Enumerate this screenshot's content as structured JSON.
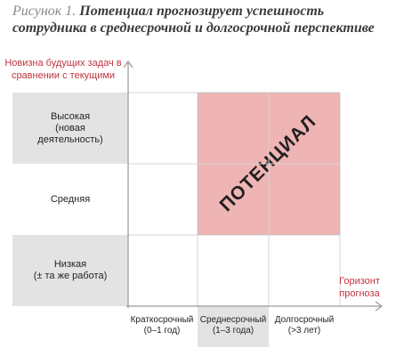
{
  "figure": {
    "title_prefix": "Рисунок 1.",
    "title": "Потенциал прогнозирует успешность сотрудника в среднесрочной и долгосрочной перспективе"
  },
  "axes": {
    "y_label": "Новизна будущих задач в сравнении с текущими",
    "x_label": "Горизонт прогноза"
  },
  "rows": [
    {
      "label": "Высокая\n(новая\nдеятельность)"
    },
    {
      "label": "Средняя"
    },
    {
      "label": "Низкая\n(± та же работа)"
    }
  ],
  "columns": [
    {
      "label": "Краткосрочный\n(0–1 год)"
    },
    {
      "label": "Среднесрочный\n(1–3 года)"
    },
    {
      "label": "Долгосрочный\n(>3 лет)"
    }
  ],
  "highlight": {
    "label": "ПОТЕНЦИАЛ",
    "color": "#efb5b5"
  },
  "colors": {
    "axis_label": "#c0343f",
    "grey_band": "#e3e3e3",
    "grid_line": "#d4d4d4"
  }
}
